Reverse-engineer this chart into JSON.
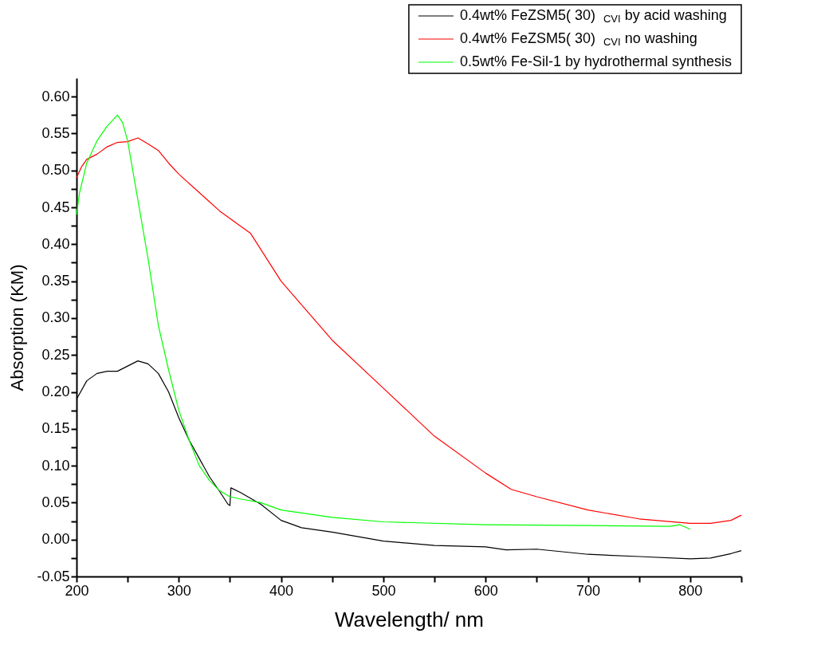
{
  "chart_data": {
    "type": "line",
    "xlabel": "Wavelength/ nm",
    "ylabel": "Absorption (KM)",
    "xlim": [
      200,
      850
    ],
    "ylim": [
      -0.05,
      0.625
    ],
    "xticks": [
      200,
      {
        "value": 250,
        "label": null
      },
      300,
      {
        "value": 350,
        "label": null
      },
      400,
      {
        "value": 450,
        "label": null
      },
      500,
      {
        "value": 550,
        "label": null
      },
      600,
      {
        "value": 650,
        "label": null
      },
      700,
      {
        "value": 750,
        "label": null
      },
      800,
      {
        "value": 850,
        "label": null
      }
    ],
    "yticks": [
      {
        "value": -0.05,
        "label": "-0.05"
      },
      {
        "value": -0.025,
        "label": null
      },
      {
        "value": 0,
        "label": "0.00"
      },
      {
        "value": 0.025,
        "label": null
      },
      {
        "value": 0.05,
        "label": "0.05"
      },
      {
        "value": 0.075,
        "label": null
      },
      {
        "value": 0.1,
        "label": "0.10"
      },
      {
        "value": 0.125,
        "label": null
      },
      {
        "value": 0.15,
        "label": "0.15"
      },
      {
        "value": 0.175,
        "label": null
      },
      {
        "value": 0.2,
        "label": "0.20"
      },
      {
        "value": 0.225,
        "label": null
      },
      {
        "value": 0.25,
        "label": "0.25"
      },
      {
        "value": 0.275,
        "label": null
      },
      {
        "value": 0.3,
        "label": "0.30"
      },
      {
        "value": 0.325,
        "label": null
      },
      {
        "value": 0.35,
        "label": "0.35"
      },
      {
        "value": 0.375,
        "label": null
      },
      {
        "value": 0.4,
        "label": "0.40"
      },
      {
        "value": 0.425,
        "label": null
      },
      {
        "value": 0.45,
        "label": "0.45"
      },
      {
        "value": 0.475,
        "label": null
      },
      {
        "value": 0.5,
        "label": "0.50"
      },
      {
        "value": 0.525,
        "label": null
      },
      {
        "value": 0.55,
        "label": "0.55"
      },
      {
        "value": 0.575,
        "label": null
      },
      {
        "value": 0.6,
        "label": "0.60"
      }
    ],
    "grid": false,
    "legend": "top right",
    "marker": "none",
    "line_style": "solid",
    "series": [
      {
        "name": "0.4wt% FeZSM5(  30) $_{CVI}$ by acid washing",
        "color": "#000000",
        "x": [
          200,
          210,
          220,
          230,
          240,
          250,
          260,
          270,
          280,
          290,
          300,
          310,
          320,
          330,
          340,
          348,
          350,
          351,
          360,
          380,
          400,
          420,
          450,
          500,
          550,
          600,
          620,
          650,
          700,
          750,
          800,
          820,
          840,
          850
        ],
        "values": [
          0.19,
          0.215,
          0.225,
          0.228,
          0.228,
          0.235,
          0.242,
          0.238,
          0.225,
          0.2,
          0.165,
          0.135,
          0.11,
          0.085,
          0.065,
          0.048,
          0.046,
          0.07,
          0.064,
          0.048,
          0.026,
          0.016,
          0.01,
          -0.002,
          -0.008,
          -0.01,
          -0.014,
          -0.013,
          -0.02,
          -0.023,
          -0.026,
          -0.025,
          -0.019,
          -0.015
        ]
      },
      {
        "name": "0.4wt% FeZSM5(  30) $_{CVI}$ no washing",
        "color": "#ff0000",
        "x": [
          200,
          205,
          210,
          220,
          230,
          240,
          250,
          260,
          270,
          280,
          290,
          300,
          320,
          340,
          350,
          370,
          400,
          450,
          500,
          550,
          600,
          625,
          650,
          700,
          750,
          800,
          820,
          840,
          850
        ],
        "values": [
          0.49,
          0.505,
          0.515,
          0.522,
          0.532,
          0.538,
          0.539,
          0.544,
          0.536,
          0.527,
          0.51,
          0.495,
          0.47,
          0.445,
          0.435,
          0.415,
          0.35,
          0.27,
          0.205,
          0.14,
          0.09,
          0.068,
          0.058,
          0.04,
          0.028,
          0.022,
          0.022,
          0.026,
          0.033
        ]
      },
      {
        "name": "0.5wt% Fe-Sil-1 by hydrothermal synthesis",
        "color": "#00ff00",
        "x": [
          200,
          203,
          210,
          220,
          230,
          240,
          245,
          250,
          260,
          270,
          280,
          290,
          300,
          310,
          320,
          330,
          340,
          350,
          360,
          380,
          400,
          450,
          500,
          600,
          700,
          780,
          790,
          800
        ],
        "values": [
          0.44,
          0.47,
          0.51,
          0.54,
          0.56,
          0.575,
          0.565,
          0.54,
          0.46,
          0.38,
          0.29,
          0.23,
          0.175,
          0.135,
          0.1,
          0.08,
          0.066,
          0.058,
          0.055,
          0.05,
          0.04,
          0.03,
          0.024,
          0.02,
          0.019,
          0.018,
          0.02,
          0.014
        ]
      }
    ]
  }
}
